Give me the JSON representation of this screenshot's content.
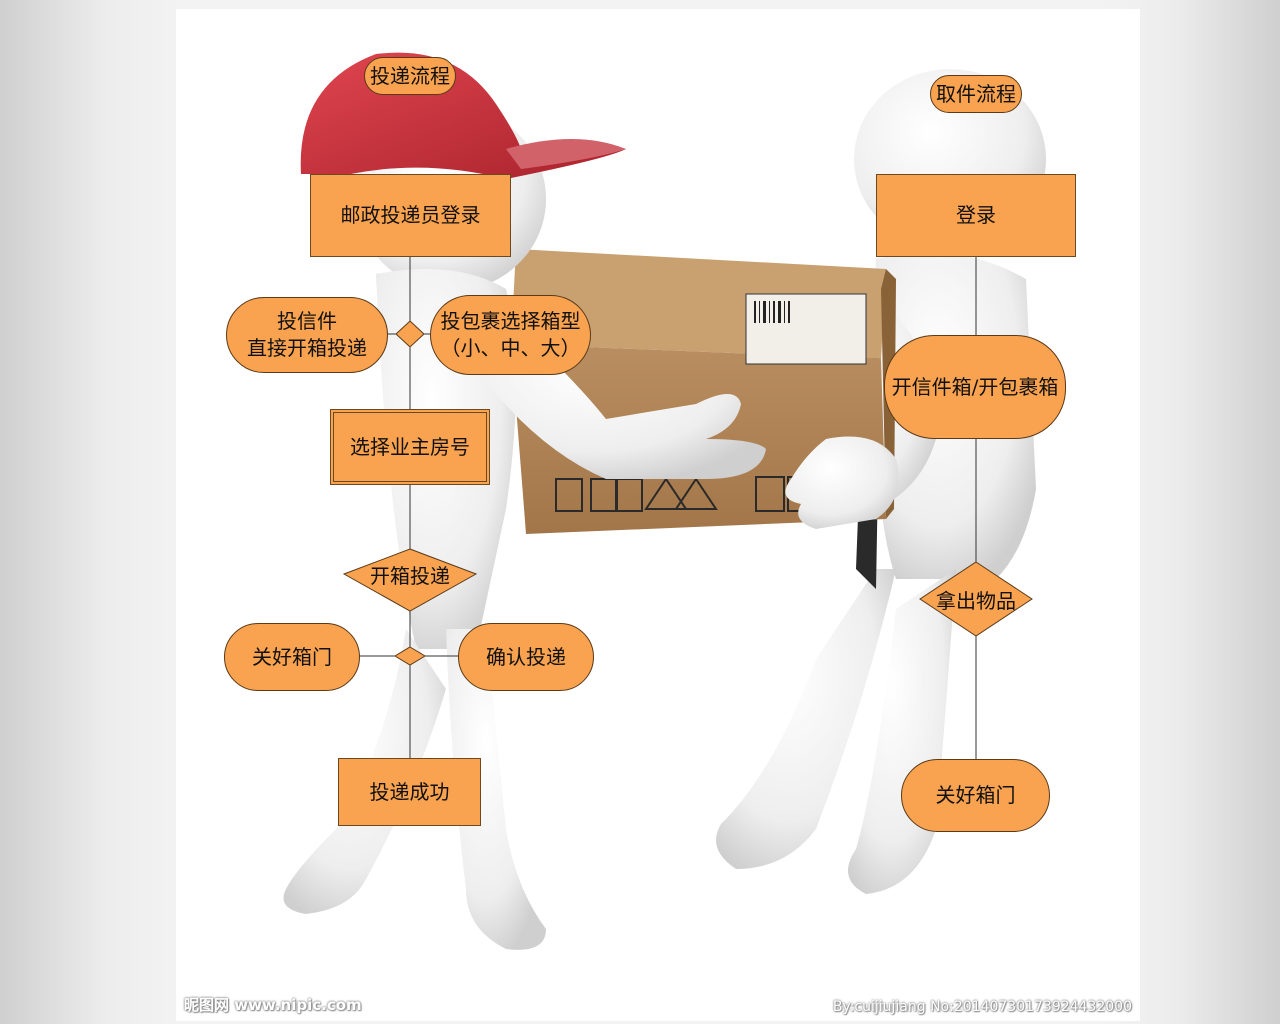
{
  "colors": {
    "node_fill": "#f9a24f",
    "node_border": "#5a3a18",
    "cap": "#c9343e",
    "box": "#b58a5c",
    "figure": "#f4f4f4"
  },
  "left_flow": {
    "title": "投递流程",
    "login": "邮政投递员登录",
    "letter": [
      "投信件",
      "直接开箱投递"
    ],
    "parcel": [
      "投包裹选择箱型",
      "（小、中、大）"
    ],
    "room": "选择业主房号",
    "open": "开箱投递",
    "close": "关好箱门",
    "confirm": "确认投递",
    "success": "投递成功"
  },
  "right_flow": {
    "title": "取件流程",
    "login": "登录",
    "open": "开信件箱/开包裹箱",
    "take": "拿出物品",
    "close": "关好箱门"
  },
  "watermark": {
    "left": "昵图网 www.nipic.com",
    "right": "By:cuijiujiang No:20140730173924432000"
  }
}
